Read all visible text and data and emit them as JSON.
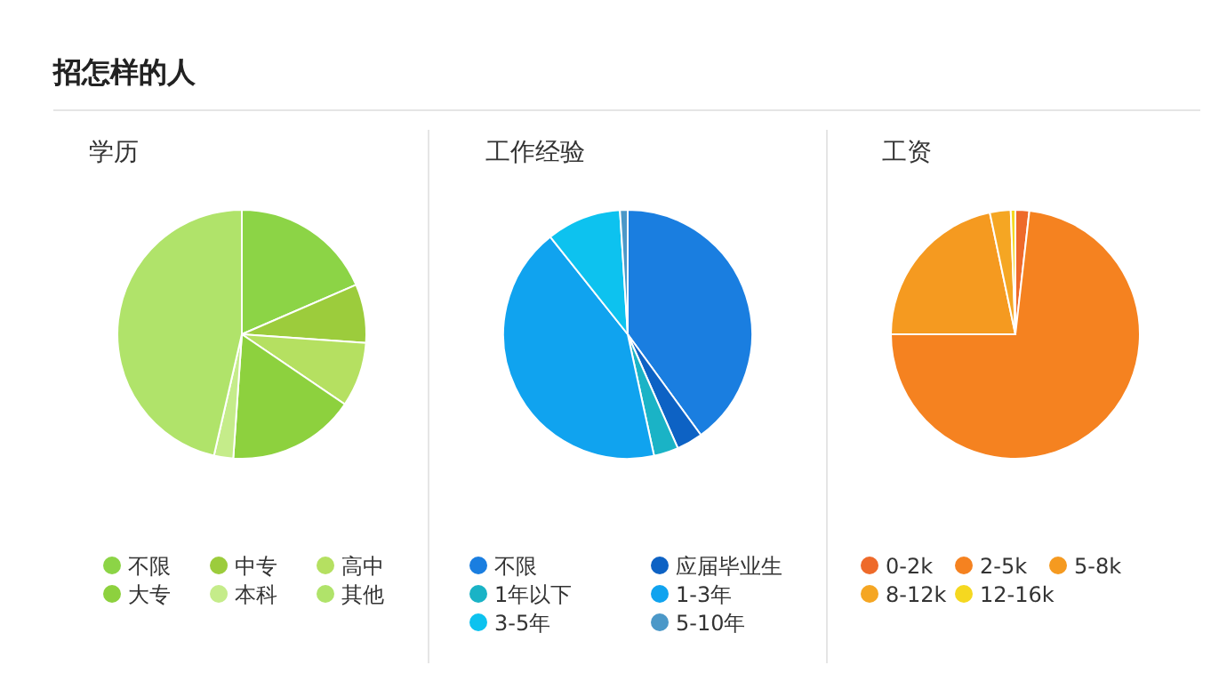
{
  "chart_data": [
    {
      "type": "pie",
      "title": "招怎样的人",
      "subtitle": "学历",
      "categories": [
        "不限",
        "中专",
        "高中",
        "大专",
        "本科",
        "其他"
      ],
      "values": [
        18.5,
        7.6,
        8.4,
        16.6,
        2.5,
        46.4
      ],
      "colors": [
        "#8cd446",
        "#9ccc3c",
        "#b5e061",
        "#8dd13e",
        "#c5ec8a",
        "#b0e36a"
      ],
      "legend": "bottom"
    },
    {
      "type": "pie",
      "subtitle": "工作经验",
      "categories": [
        "不限",
        "应届毕业生",
        "1年以下",
        "1-3年",
        "3-5年",
        "5-10年"
      ],
      "values": [
        40,
        3.4,
        3.2,
        42.7,
        9.7,
        1
      ],
      "colors": [
        "#1a7ee0",
        "#0d62c4",
        "#1ab3c6",
        "#10a3ef",
        "#0dc2ef",
        "#4b98c8"
      ],
      "legend": "bottom"
    },
    {
      "type": "pie",
      "subtitle": "工资",
      "categories": [
        "0-2k",
        "2-5k",
        "5-8k",
        "8-12k",
        "12-16k"
      ],
      "values": [
        1.8,
        73.2,
        21.7,
        2.7,
        0.6
      ],
      "colors": [
        "#ee6a2a",
        "#f58220",
        "#f59a20",
        "#f5a623",
        "#f5d820"
      ],
      "legend": "bottom"
    }
  ]
}
